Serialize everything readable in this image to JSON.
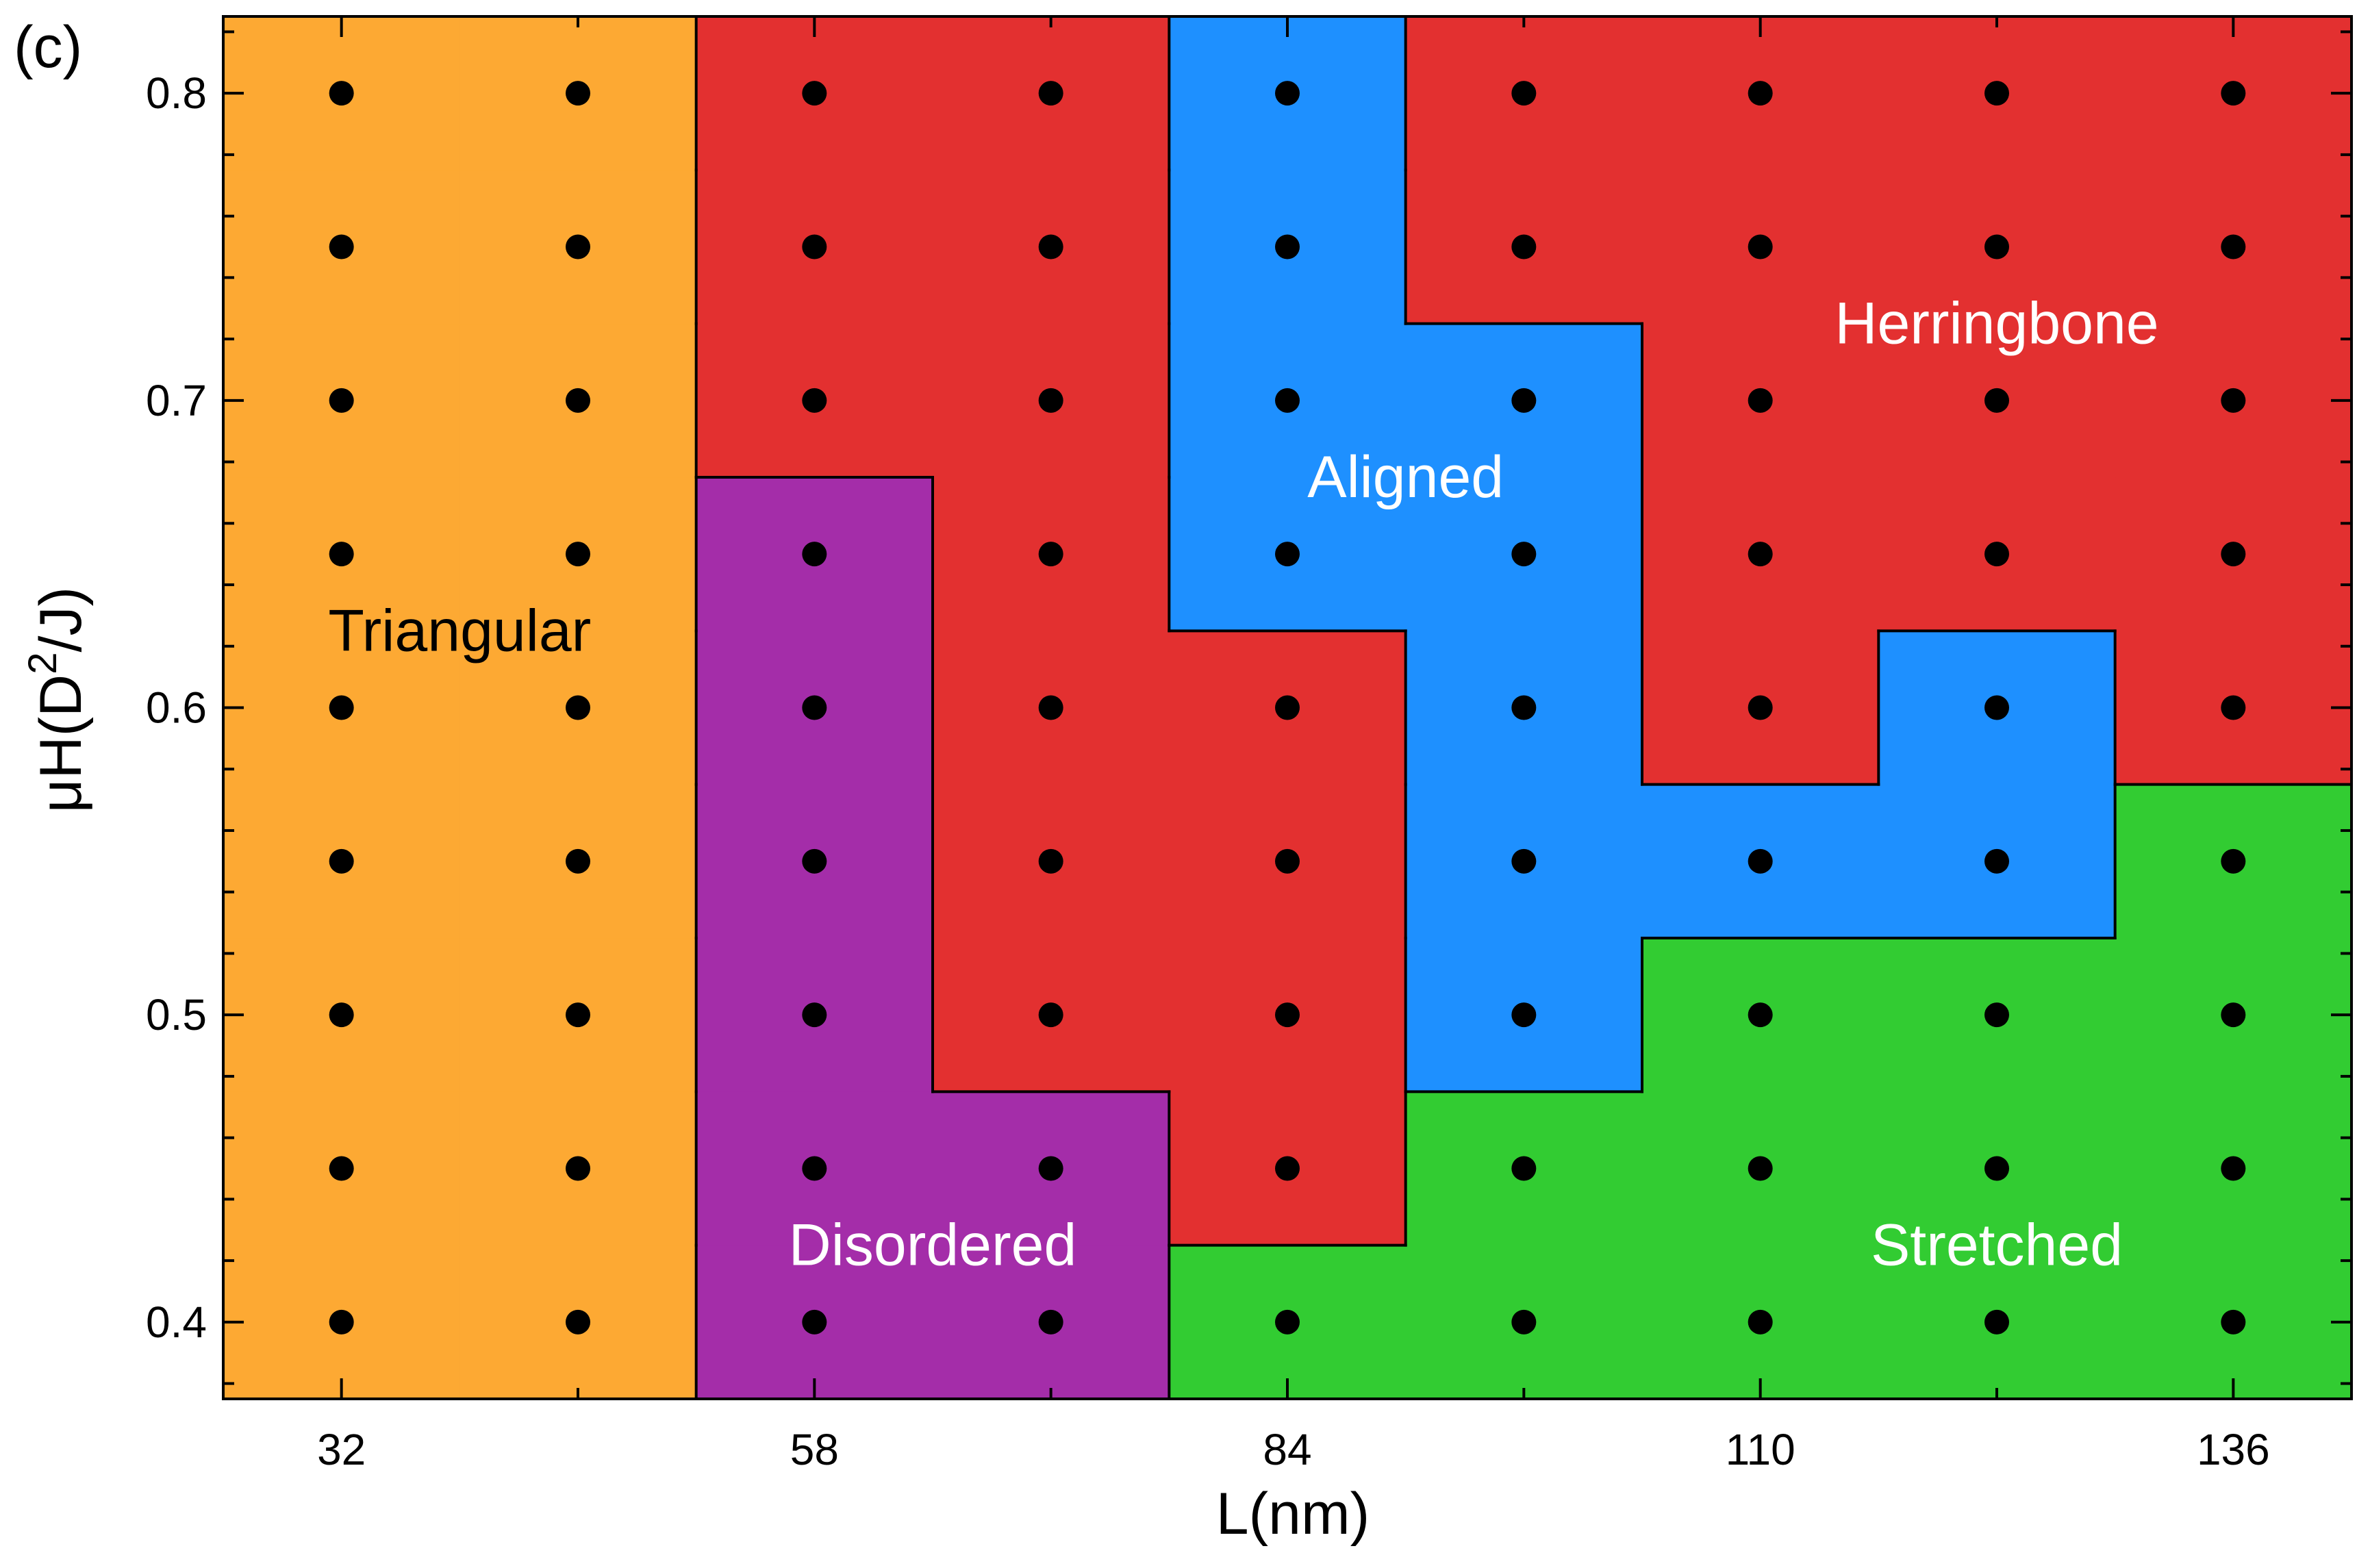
{
  "panel_label": "(c)",
  "chart_data": {
    "type": "heatmap",
    "title": "",
    "xlabel": "L(nm)",
    "ylabel_main": "μH(D",
    "ylabel_sup": "2",
    "ylabel_end": "/J)",
    "x_values": [
      32,
      45,
      58,
      71,
      84,
      97,
      110,
      123,
      136
    ],
    "y_values": [
      0.4,
      0.45,
      0.5,
      0.55,
      0.6,
      0.65,
      0.7,
      0.75,
      0.8
    ],
    "x_tick_labels": [
      "32",
      "58",
      "84",
      "110",
      "136"
    ],
    "x_major_ticks": [
      32,
      58,
      84,
      110,
      136
    ],
    "y_tick_labels": [
      "0.4",
      "0.5",
      "0.6",
      "0.7",
      "0.8"
    ],
    "y_major_ticks": [
      0.4,
      0.5,
      0.6,
      0.7,
      0.8
    ],
    "xlim": [
      25.5,
      142.5
    ],
    "ylim": [
      0.375,
      0.825
    ],
    "grid": false,
    "phase_colors": {
      "Triangular": "#FDA933",
      "Herringbone": "#E33030",
      "Disordered": "#A42DA9",
      "Aligned": "#1E90FF",
      "Stretched": "#32CC32"
    },
    "point_color": "#000000",
    "phase_grid": [
      [
        "Triangular",
        "Triangular",
        "Disordered",
        "Disordered",
        "Stretched",
        "Stretched",
        "Stretched",
        "Stretched",
        "Stretched"
      ],
      [
        "Triangular",
        "Triangular",
        "Disordered",
        "Disordered",
        "Herringbone",
        "Stretched",
        "Stretched",
        "Stretched",
        "Stretched"
      ],
      [
        "Triangular",
        "Triangular",
        "Disordered",
        "Herringbone",
        "Herringbone",
        "Aligned",
        "Stretched",
        "Stretched",
        "Stretched"
      ],
      [
        "Triangular",
        "Triangular",
        "Disordered",
        "Herringbone",
        "Herringbone",
        "Aligned",
        "Aligned",
        "Aligned",
        "Stretched"
      ],
      [
        "Triangular",
        "Triangular",
        "Disordered",
        "Herringbone",
        "Herringbone",
        "Aligned",
        "Herringbone",
        "Aligned",
        "Herringbone"
      ],
      [
        "Triangular",
        "Triangular",
        "Disordered",
        "Herringbone",
        "Aligned",
        "Aligned",
        "Herringbone",
        "Herringbone",
        "Herringbone"
      ],
      [
        "Triangular",
        "Triangular",
        "Herringbone",
        "Herringbone",
        "Aligned",
        "Aligned",
        "Herringbone",
        "Herringbone",
        "Herringbone"
      ],
      [
        "Triangular",
        "Triangular",
        "Herringbone",
        "Herringbone",
        "Aligned",
        "Herringbone",
        "Herringbone",
        "Herringbone",
        "Herringbone"
      ],
      [
        "Triangular",
        "Triangular",
        "Herringbone",
        "Herringbone",
        "Aligned",
        "Herringbone",
        "Herringbone",
        "Herringbone",
        "Herringbone"
      ]
    ],
    "region_labels": [
      {
        "text": "Triangular",
        "x": 38.5,
        "y": 0.625,
        "color": "#000000"
      },
      {
        "text": "Herringbone",
        "x": 123,
        "y": 0.725,
        "color": "#ffffff"
      },
      {
        "text": "Aligned",
        "x": 90.5,
        "y": 0.675,
        "color": "#ffffff"
      },
      {
        "text": "Disordered",
        "x": 64.5,
        "y": 0.425,
        "color": "#ffffff"
      },
      {
        "text": "Stretched",
        "x": 123,
        "y": 0.425,
        "color": "#ffffff"
      }
    ]
  }
}
